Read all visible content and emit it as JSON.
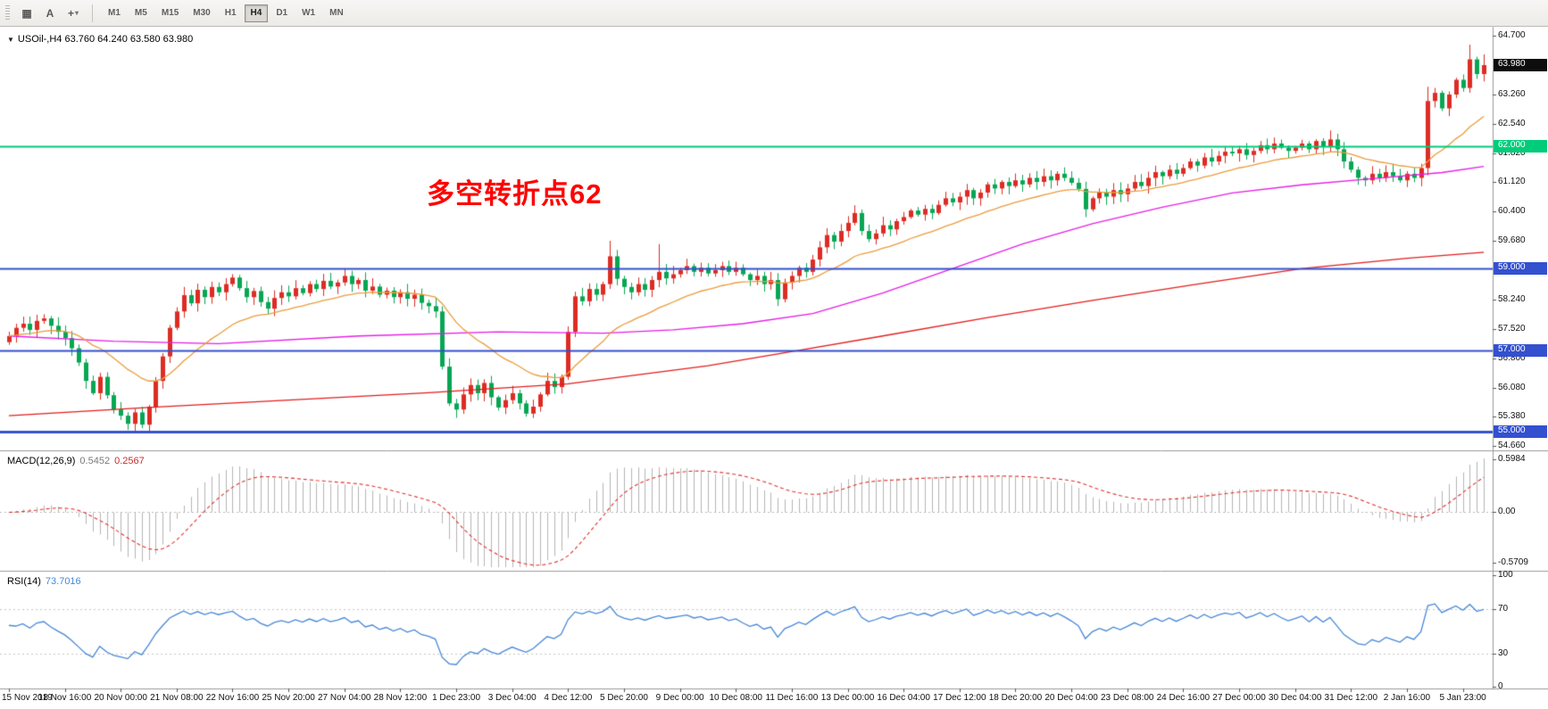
{
  "toolbar": {
    "tools": [
      {
        "name": "chart-grid-icon",
        "glyph": "▦"
      },
      {
        "name": "cursor-tool-icon",
        "glyph": "A"
      },
      {
        "name": "crosshair-tool-icon",
        "glyph": "+",
        "caret": "▾"
      }
    ],
    "timeframes": [
      {
        "label": "M1"
      },
      {
        "label": "M5"
      },
      {
        "label": "M15"
      },
      {
        "label": "M30"
      },
      {
        "label": "H1"
      },
      {
        "label": "H4",
        "active": true
      },
      {
        "label": "D1"
      },
      {
        "label": "W1"
      },
      {
        "label": "MN"
      }
    ]
  },
  "chart": {
    "symbol_title": "USOil-,H4 63.760 64.240 63.580 63.980",
    "dropdown_glyph": "▼",
    "annotation": {
      "text": "多空转折点62",
      "color": "#ff0000"
    },
    "price_axis": {
      "labels": [
        "64.700",
        "63.260",
        "62.540",
        "61.820",
        "61.120",
        "60.400",
        "59.680",
        "58.240",
        "57.520",
        "56.800",
        "56.080",
        "55.380",
        "54.660"
      ],
      "tags": [
        {
          "label": "63.980",
          "price": 63.98,
          "bg": "#0d0d0d",
          "fg": "#ffffff",
          "name": "last-price-tag"
        },
        {
          "label": "62.000",
          "price": 62.0,
          "bg": "#00cc7a",
          "fg": "#ffffff",
          "name": "price-level-tag-62"
        },
        {
          "label": "59.000",
          "price": 59.0,
          "bg": "#3350cf",
          "fg": "#ffffff",
          "name": "price-level-tag-59"
        },
        {
          "label": "57.000",
          "price": 57.0,
          "bg": "#3350cf",
          "fg": "#ffffff",
          "name": "price-level-tag-57"
        },
        {
          "label": "55.000",
          "price": 55.0,
          "bg": "#3350cf",
          "fg": "#ffffff",
          "name": "price-level-tag-55"
        }
      ]
    },
    "hlines": [
      {
        "price": 62.0,
        "color": "#00cc7a",
        "width": 2
      },
      {
        "price": 59.0,
        "color": "#3350cf",
        "width": 2
      },
      {
        "price": 57.0,
        "color": "#3350cf",
        "width": 2
      },
      {
        "price": 55.0,
        "color": "#3350cf",
        "width": 3
      }
    ]
  },
  "macd": {
    "label": "MACD(12,26,9)",
    "value_main": "0.5452",
    "value_signal": "0.2567",
    "axis": [
      "0.5984",
      "0.00",
      "-0.5709"
    ]
  },
  "rsi": {
    "label": "RSI(14)",
    "value": "73.7016",
    "axis": [
      "100",
      "70",
      "30",
      "0"
    ],
    "levels": [
      70,
      30
    ]
  },
  "chart_data": {
    "type": "candlestick",
    "symbol": "USOil-",
    "timeframe": "H4",
    "quote": {
      "open": 63.76,
      "high": 64.24,
      "low": 63.58,
      "close": 63.98
    },
    "ylim": [
      54.66,
      64.7
    ],
    "first_open": 57.2,
    "closes": [
      57.35,
      57.55,
      57.65,
      57.5,
      57.72,
      57.78,
      57.6,
      57.45,
      57.3,
      57.05,
      56.7,
      56.25,
      55.95,
      56.35,
      55.9,
      55.55,
      55.4,
      55.2,
      55.48,
      55.18,
      55.62,
      56.25,
      56.85,
      57.55,
      57.95,
      58.35,
      58.15,
      58.48,
      58.3,
      58.55,
      58.42,
      58.62,
      58.78,
      58.52,
      58.3,
      58.45,
      58.18,
      58.02,
      58.28,
      58.42,
      58.32,
      58.52,
      58.4,
      58.62,
      58.5,
      58.7,
      58.56,
      58.66,
      58.82,
      58.62,
      58.72,
      58.46,
      58.56,
      58.36,
      58.46,
      58.3,
      58.42,
      58.26,
      58.36,
      58.16,
      58.08,
      57.95,
      56.6,
      55.7,
      55.55,
      55.92,
      56.15,
      55.95,
      56.2,
      55.85,
      55.6,
      55.78,
      55.95,
      55.7,
      55.45,
      55.62,
      55.92,
      56.25,
      56.1,
      56.35,
      57.45,
      58.32,
      58.2,
      58.5,
      58.36,
      58.62,
      59.3,
      58.75,
      58.55,
      58.42,
      58.62,
      58.48,
      58.72,
      58.92,
      58.76,
      58.86,
      58.96,
      59.06,
      58.92,
      59.02,
      58.88,
      58.96,
      59.06,
      58.92,
      59.02,
      58.86,
      58.72,
      58.82,
      58.62,
      58.72,
      58.25,
      58.66,
      58.82,
      59.02,
      58.92,
      59.22,
      59.52,
      59.82,
      59.66,
      59.92,
      60.12,
      60.36,
      59.92,
      59.72,
      59.86,
      60.06,
      59.96,
      60.16,
      60.26,
      60.42,
      60.32,
      60.46,
      60.36,
      60.56,
      60.72,
      60.62,
      60.76,
      60.92,
      60.72,
      60.86,
      61.06,
      60.96,
      61.12,
      61.02,
      61.16,
      61.06,
      61.22,
      61.12,
      61.26,
      61.16,
      61.32,
      61.22,
      61.1,
      60.95,
      60.45,
      60.72,
      60.86,
      60.76,
      60.92,
      60.82,
      60.96,
      61.12,
      61.02,
      61.22,
      61.36,
      61.26,
      61.42,
      61.32,
      61.46,
      61.62,
      61.52,
      61.72,
      61.62,
      61.76,
      61.86,
      61.82,
      61.92,
      61.78,
      61.88,
      62.02,
      61.92,
      62.06,
      61.96,
      61.88,
      61.96,
      62.06,
      61.92,
      62.12,
      61.98,
      62.16,
      61.92,
      61.62,
      61.42,
      61.22,
      61.16,
      61.32,
      61.22,
      61.36,
      61.26,
      61.16,
      61.32,
      61.22,
      61.46,
      63.1,
      63.3,
      62.92,
      63.26,
      63.62,
      63.42,
      64.12,
      63.76,
      63.98
    ],
    "wick_overrides": {
      "17": [
        null,
        55.05
      ],
      "86": [
        59.68,
        null
      ],
      "93": [
        59.6,
        null
      ],
      "121": [
        60.55,
        null
      ],
      "154": [
        null,
        60.26
      ],
      "189": [
        62.38,
        null
      ],
      "203": [
        63.45,
        61.28
      ],
      "209": [
        64.48,
        null
      ],
      "211": [
        64.24,
        63.58
      ]
    },
    "overlays": {
      "ma_red": {
        "color": "#e31e1e",
        "points": [
          [
            0,
            55.4
          ],
          [
            20,
            55.6
          ],
          [
            40,
            55.78
          ],
          [
            60,
            55.96
          ],
          [
            80,
            56.18
          ],
          [
            100,
            56.62
          ],
          [
            113,
            57.0
          ],
          [
            125,
            57.35
          ],
          [
            140,
            57.8
          ],
          [
            155,
            58.22
          ],
          [
            170,
            58.62
          ],
          [
            185,
            59.0
          ],
          [
            200,
            59.25
          ],
          [
            211,
            59.4
          ]
        ]
      },
      "ma_magenta": {
        "color": "#e81ee8",
        "points": [
          [
            0,
            57.35
          ],
          [
            15,
            57.22
          ],
          [
            30,
            57.16
          ],
          [
            50,
            57.35
          ],
          [
            70,
            57.45
          ],
          [
            85,
            57.42
          ],
          [
            95,
            57.5
          ],
          [
            105,
            57.65
          ],
          [
            115,
            57.9
          ],
          [
            125,
            58.4
          ],
          [
            135,
            59.0
          ],
          [
            145,
            59.6
          ],
          [
            155,
            60.1
          ],
          [
            165,
            60.5
          ],
          [
            175,
            60.85
          ],
          [
            185,
            61.05
          ],
          [
            195,
            61.2
          ],
          [
            205,
            61.35
          ],
          [
            211,
            61.5
          ]
        ]
      },
      "ma_orange": {
        "color": "#eb9c3c",
        "period": 20
      }
    },
    "indicators": {
      "macd": {
        "params": [
          12,
          26,
          9
        ],
        "range": [
          -0.62,
          0.65
        ]
      },
      "rsi": {
        "period": 14
      }
    },
    "time_labels": [
      "15 Nov 2019",
      "18 Nov 16:00",
      "20 Nov 00:00",
      "21 Nov 08:00",
      "22 Nov 16:00",
      "25 Nov 20:00",
      "27 Nov 04:00",
      "28 Nov 12:00",
      "1 Dec 23:00",
      "3 Dec 04:00",
      "4 Dec 12:00",
      "5 Dec 20:00",
      "9 Dec 00:00",
      "10 Dec 08:00",
      "11 Dec 16:00",
      "13 Dec 00:00",
      "16 Dec 04:00",
      "17 Dec 12:00",
      "18 Dec 20:00",
      "20 Dec 04:00",
      "23 Dec 08:00",
      "24 Dec 16:00",
      "27 Dec 00:00",
      "30 Dec 04:00",
      "31 Dec 12:00",
      "2 Jan 16:00",
      "5 Jan 23:00"
    ],
    "colors": {
      "bull": "#dd2c23",
      "bear": "#07a653",
      "macd_hist": "#b5b5b5",
      "macd_signal": "#e03030",
      "rsi": "#4788d8"
    }
  }
}
